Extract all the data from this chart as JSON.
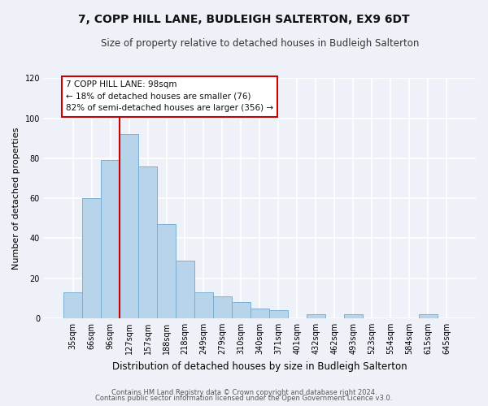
{
  "title": "7, COPP HILL LANE, BUDLEIGH SALTERTON, EX9 6DT",
  "subtitle": "Size of property relative to detached houses in Budleigh Salterton",
  "xlabel": "Distribution of detached houses by size in Budleigh Salterton",
  "ylabel": "Number of detached properties",
  "bar_labels": [
    "35sqm",
    "66sqm",
    "96sqm",
    "127sqm",
    "157sqm",
    "188sqm",
    "218sqm",
    "249sqm",
    "279sqm",
    "310sqm",
    "340sqm",
    "371sqm",
    "401sqm",
    "432sqm",
    "462sqm",
    "493sqm",
    "523sqm",
    "554sqm",
    "584sqm",
    "615sqm",
    "645sqm"
  ],
  "bar_values": [
    13,
    60,
    79,
    92,
    76,
    47,
    29,
    13,
    11,
    8,
    5,
    4,
    0,
    2,
    0,
    2,
    0,
    0,
    0,
    2,
    0
  ],
  "bar_color": "#b8d4ea",
  "bar_edge_color": "#7aafd4",
  "reference_line_color": "#cc0000",
  "ylim": [
    0,
    120
  ],
  "yticks": [
    0,
    20,
    40,
    60,
    80,
    100,
    120
  ],
  "annotation_title": "7 COPP HILL LANE: 98sqm",
  "annotation_line1": "← 18% of detached houses are smaller (76)",
  "annotation_line2": "82% of semi-detached houses are larger (356) →",
  "annotation_box_color": "#ffffff",
  "annotation_box_edge": "#cc0000",
  "footer_line1": "Contains HM Land Registry data © Crown copyright and database right 2024.",
  "footer_line2": "Contains public sector information licensed under the Open Government Licence v3.0.",
  "background_color": "#eef2f8",
  "plot_bg_color": "#eef2f8",
  "grid_color": "#ffffff"
}
